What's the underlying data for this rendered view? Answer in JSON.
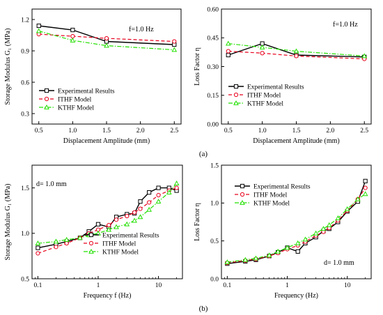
{
  "colors": {
    "experimental": "#000000",
    "ithf": "#e8001c",
    "kthf": "#22e000"
  },
  "markers": {
    "experimental": "square",
    "ithf": "circle",
    "kthf": "triangle"
  },
  "captions": [
    "(a)",
    "(b)"
  ],
  "chart_data": [
    {
      "type": "line",
      "xlabel": "Displacement Amplitude (mm)",
      "ylabel": "Storage Modulus G₁ (MPa)",
      "xlim": [
        0.4,
        2.6
      ],
      "ylim": [
        0.2,
        1.3
      ],
      "xticks": [
        0.5,
        1.0,
        1.5,
        2.0,
        2.5
      ],
      "yticks": [
        0.3,
        0.6,
        0.9,
        1.2
      ],
      "xtick_labels": [
        "0.5",
        "1.0",
        "1.5",
        "2.0",
        "2.5"
      ],
      "ytick_labels": [
        "0.3",
        "0.6",
        "0.9",
        "1.2"
      ],
      "xscale": "linear",
      "annotation": "f=1.0 Hz",
      "legend_position": "lower-left",
      "series": [
        {
          "name": "Experimental Results",
          "x": [
            0.5,
            1.0,
            1.5,
            2.5
          ],
          "y": [
            1.14,
            1.1,
            0.99,
            0.96
          ]
        },
        {
          "name": "ITHF Model",
          "x": [
            0.5,
            1.0,
            1.5,
            2.5
          ],
          "y": [
            1.06,
            1.04,
            1.02,
            0.99
          ]
        },
        {
          "name": "KTHF Model",
          "x": [
            0.5,
            1.0,
            1.5,
            2.5
          ],
          "y": [
            1.09,
            1.0,
            0.95,
            0.91
          ]
        }
      ]
    },
    {
      "type": "line",
      "xlabel": "Displacement Amplitude (mm)",
      "ylabel": "Loss Factor η",
      "xlim": [
        0.4,
        2.6
      ],
      "ylim": [
        0.0,
        0.6
      ],
      "xticks": [
        0.5,
        1.0,
        1.5,
        2.0,
        2.5
      ],
      "yticks": [
        0.0,
        0.15,
        0.3,
        0.45,
        0.6
      ],
      "xtick_labels": [
        "0.5",
        "1.0",
        "1.5",
        "2.0",
        "2.5"
      ],
      "ytick_labels": [
        "0.00",
        "0.15",
        "0.30",
        "0.45",
        "0.60"
      ],
      "xscale": "linear",
      "annotation": "f=1.0 Hz",
      "legend_position": "lower-left",
      "series": [
        {
          "name": "Experimental Results",
          "x": [
            0.5,
            1.0,
            1.5,
            2.5
          ],
          "y": [
            0.36,
            0.42,
            0.36,
            0.35
          ]
        },
        {
          "name": "ITHF Model",
          "x": [
            0.5,
            1.0,
            1.5,
            2.5
          ],
          "y": [
            0.38,
            0.37,
            0.355,
            0.34
          ]
        },
        {
          "name": "KTHF Model",
          "x": [
            0.5,
            1.0,
            1.5,
            2.5
          ],
          "y": [
            0.42,
            0.4,
            0.38,
            0.355
          ]
        }
      ]
    },
    {
      "type": "line",
      "xlabel": "Frequency f (Hz)",
      "ylabel": "Storage Modulus G₁ (MPa)",
      "xlim": [
        0.08,
        25
      ],
      "ylim": [
        0.5,
        1.75
      ],
      "xticks": [
        0.1,
        1,
        10
      ],
      "yticks": [
        0.5,
        1.0,
        1.5
      ],
      "xtick_labels": [
        "0.1",
        "1",
        "10"
      ],
      "ytick_labels": [
        "0.5",
        "1.0",
        "1.5"
      ],
      "xscale": "log",
      "annotation": "d= 1.0 mm",
      "legend_position": "lower-right",
      "series": [
        {
          "name": "Experimental Results",
          "x": [
            0.1,
            0.2,
            0.3,
            0.5,
            0.7,
            1,
            1.5,
            2,
            3,
            4,
            5,
            7,
            10,
            15,
            20
          ],
          "y": [
            0.84,
            0.88,
            0.91,
            0.95,
            1.02,
            1.1,
            1.07,
            1.18,
            1.21,
            1.22,
            1.35,
            1.45,
            1.5,
            1.5,
            1.47
          ]
        },
        {
          "name": "ITHF Model",
          "x": [
            0.1,
            0.2,
            0.3,
            0.5,
            0.7,
            1,
            1.5,
            2,
            3,
            4,
            5,
            7,
            10,
            15,
            20
          ],
          "y": [
            0.78,
            0.85,
            0.89,
            0.95,
            1.0,
            1.04,
            1.09,
            1.15,
            1.19,
            1.23,
            1.27,
            1.34,
            1.42,
            1.47,
            1.5
          ]
        },
        {
          "name": "KTHF Model",
          "x": [
            0.1,
            0.2,
            0.3,
            0.5,
            0.7,
            1,
            1.5,
            2,
            3,
            4,
            5,
            7,
            10,
            15,
            20
          ],
          "y": [
            0.89,
            0.91,
            0.93,
            0.95,
            0.98,
            1.0,
            1.04,
            1.07,
            1.1,
            1.14,
            1.18,
            1.26,
            1.35,
            1.45,
            1.55
          ]
        }
      ]
    },
    {
      "type": "line",
      "xlabel": "Frequency  (Hz)",
      "ylabel": "Loss Factor η",
      "xlim": [
        0.08,
        25
      ],
      "ylim": [
        0.0,
        1.5
      ],
      "xticks": [
        0.1,
        1,
        10
      ],
      "yticks": [
        0.0,
        0.5,
        1.0,
        1.5
      ],
      "xtick_labels": [
        "0.1",
        "1",
        "10"
      ],
      "ytick_labels": [
        "0.0",
        "0.5",
        "1.0",
        "1.5"
      ],
      "xscale": "log",
      "annotation": "d= 1.0 mm",
      "legend_position": "upper-left",
      "series": [
        {
          "name": "Experimental Results",
          "x": [
            0.1,
            0.2,
            0.3,
            0.5,
            0.7,
            1,
            1.5,
            2,
            3,
            4,
            5,
            7,
            10,
            15,
            20
          ],
          "y": [
            0.2,
            0.23,
            0.25,
            0.3,
            0.35,
            0.41,
            0.36,
            0.47,
            0.55,
            0.63,
            0.66,
            0.75,
            0.89,
            1.02,
            1.29
          ]
        },
        {
          "name": "ITHF Model",
          "x": [
            0.1,
            0.2,
            0.3,
            0.5,
            0.7,
            1,
            1.5,
            2,
            3,
            4,
            5,
            7,
            10,
            15,
            20
          ],
          "y": [
            0.21,
            0.24,
            0.26,
            0.3,
            0.34,
            0.39,
            0.44,
            0.49,
            0.57,
            0.62,
            0.67,
            0.77,
            0.9,
            1.05,
            1.2
          ]
        },
        {
          "name": "KTHF Model",
          "x": [
            0.1,
            0.2,
            0.3,
            0.5,
            0.7,
            1,
            1.5,
            2,
            3,
            4,
            5,
            7,
            10,
            15,
            20
          ],
          "y": [
            0.22,
            0.25,
            0.27,
            0.31,
            0.36,
            0.41,
            0.47,
            0.52,
            0.6,
            0.66,
            0.71,
            0.8,
            0.92,
            1.05,
            1.12
          ]
        }
      ]
    }
  ]
}
